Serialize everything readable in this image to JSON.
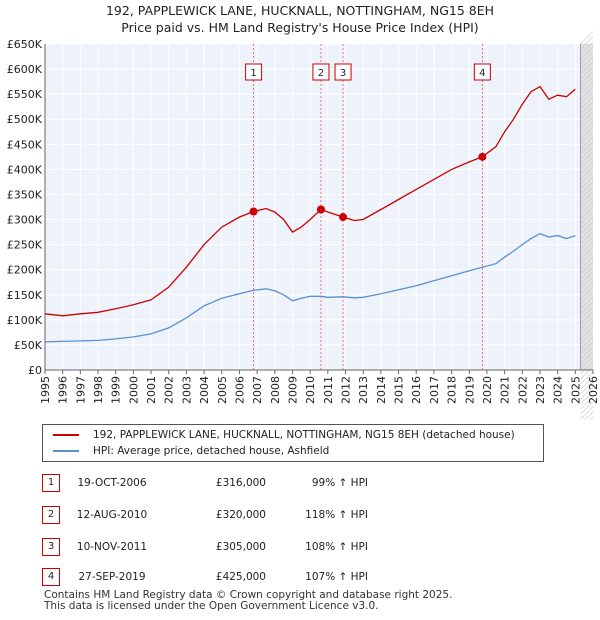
{
  "header": {
    "title_line1": "192, PAPPLEWICK LANE, HUCKNALL, NOTTINGHAM, NG15 8EH",
    "title_line2": "Price paid vs. HM Land Registry's House Price Index (HPI)"
  },
  "chart_data": {
    "type": "line",
    "x_range": [
      1995,
      2026
    ],
    "ylim": [
      0,
      650000
    ],
    "y_ticks": [
      0,
      50000,
      100000,
      150000,
      200000,
      250000,
      300000,
      350000,
      400000,
      450000,
      500000,
      550000,
      600000,
      650000
    ],
    "y_tick_labels": [
      "£0",
      "£50K",
      "£100K",
      "£150K",
      "£200K",
      "£250K",
      "£300K",
      "£350K",
      "£400K",
      "£450K",
      "£500K",
      "£550K",
      "£600K",
      "£650K"
    ],
    "x_ticks": [
      1995,
      1996,
      1997,
      1998,
      1999,
      2000,
      2001,
      2002,
      2003,
      2004,
      2005,
      2006,
      2007,
      2008,
      2009,
      2010,
      2011,
      2012,
      2013,
      2014,
      2015,
      2016,
      2017,
      2018,
      2019,
      2020,
      2021,
      2022,
      2023,
      2024,
      2025,
      2026
    ],
    "x_tick_labels": [
      "1995",
      "1996",
      "1997",
      "1998",
      "1999",
      "2000",
      "2001",
      "2002",
      "2003",
      "2004",
      "2005",
      "2006",
      "2007",
      "2008",
      "2009",
      "2010",
      "2011",
      "2012",
      "2013",
      "2014",
      "2015",
      "2016",
      "2017",
      "2018",
      "2019",
      "2020",
      "2021",
      "2022",
      "2023",
      "2024",
      "2025",
      "2026"
    ],
    "grid": true,
    "forecast_start": 2025.3,
    "series": [
      {
        "name": "192, PAPPLEWICK LANE, HUCKNALL, NOTTINGHAM, NG15 8EH (detached house)",
        "color": "#cc0000",
        "x": [
          1995.0,
          1996.0,
          1997.0,
          1998.0,
          1999.0,
          2000.0,
          2001.0,
          2002.0,
          2003.0,
          2004.0,
          2005.0,
          2006.0,
          2006.8,
          2007.5,
          2008.0,
          2008.5,
          2009.0,
          2009.5,
          2010.0,
          2010.6,
          2011.0,
          2011.86,
          2012.5,
          2013.0,
          2014.0,
          2015.0,
          2016.0,
          2017.0,
          2018.0,
          2019.0,
          2019.74,
          2020.5,
          2021.0,
          2021.5,
          2022.0,
          2022.5,
          2023.0,
          2023.5,
          2024.0,
          2024.5,
          2025.0
        ],
        "y": [
          112000,
          108000,
          112000,
          115000,
          122000,
          130000,
          140000,
          165000,
          205000,
          250000,
          285000,
          305000,
          316000,
          322000,
          315000,
          300000,
          275000,
          285000,
          300000,
          320000,
          315000,
          305000,
          298000,
          300000,
          320000,
          340000,
          360000,
          380000,
          400000,
          415000,
          425000,
          445000,
          475000,
          500000,
          530000,
          555000,
          565000,
          540000,
          548000,
          545000,
          560000
        ]
      },
      {
        "name": "HPI: Average price, detached house, Ashfield",
        "color": "#5b8fd0",
        "x": [
          1995.0,
          1996.0,
          1997.0,
          1998.0,
          1999.0,
          2000.0,
          2001.0,
          2002.0,
          2003.0,
          2004.0,
          2005.0,
          2006.0,
          2006.8,
          2007.5,
          2008.0,
          2008.5,
          2009.0,
          2009.5,
          2010.0,
          2010.6,
          2011.0,
          2011.86,
          2012.5,
          2013.0,
          2014.0,
          2015.0,
          2016.0,
          2017.0,
          2018.0,
          2019.0,
          2019.74,
          2020.5,
          2021.0,
          2021.5,
          2022.0,
          2022.5,
          2023.0,
          2023.5,
          2024.0,
          2024.5,
          2025.0
        ],
        "y": [
          56000,
          57000,
          58000,
          59000,
          62000,
          66000,
          72000,
          84000,
          104000,
          128000,
          143000,
          152000,
          159000,
          162000,
          158000,
          150000,
          138000,
          143000,
          147000,
          147000,
          145000,
          146000,
          144000,
          145000,
          152000,
          160000,
          168000,
          178000,
          188000,
          198000,
          205000,
          212000,
          225000,
          237000,
          250000,
          262000,
          272000,
          265000,
          268000,
          262000,
          268000
        ]
      }
    ],
    "sales": [
      {
        "label": "1",
        "x": 2006.8,
        "y": 316000
      },
      {
        "label": "2",
        "x": 2010.61,
        "y": 320000
      },
      {
        "label": "3",
        "x": 2011.86,
        "y": 305000
      },
      {
        "label": "4",
        "x": 2019.74,
        "y": 425000
      }
    ]
  },
  "legend": {
    "items": [
      {
        "label": "192, PAPPLEWICK LANE, HUCKNALL, NOTTINGHAM, NG15 8EH (detached house)",
        "color": "#cc0000"
      },
      {
        "label": "HPI: Average price, detached house, Ashfield",
        "color": "#5b8fd0"
      }
    ]
  },
  "sales_table": [
    {
      "num": "1",
      "date": "19-OCT-2006",
      "price": "£316,000",
      "hpi": "99% ↑ HPI"
    },
    {
      "num": "2",
      "date": "12-AUG-2010",
      "price": "£320,000",
      "hpi": "118% ↑ HPI"
    },
    {
      "num": "3",
      "date": "10-NOV-2011",
      "price": "£305,000",
      "hpi": "108% ↑ HPI"
    },
    {
      "num": "4",
      "date": "27-SEP-2019",
      "price": "£425,000",
      "hpi": "107% ↑ HPI"
    }
  ],
  "footer": {
    "line1": "Contains HM Land Registry data © Crown copyright and database right 2025.",
    "line2": "This data is licensed under the Open Government Licence v3.0."
  }
}
